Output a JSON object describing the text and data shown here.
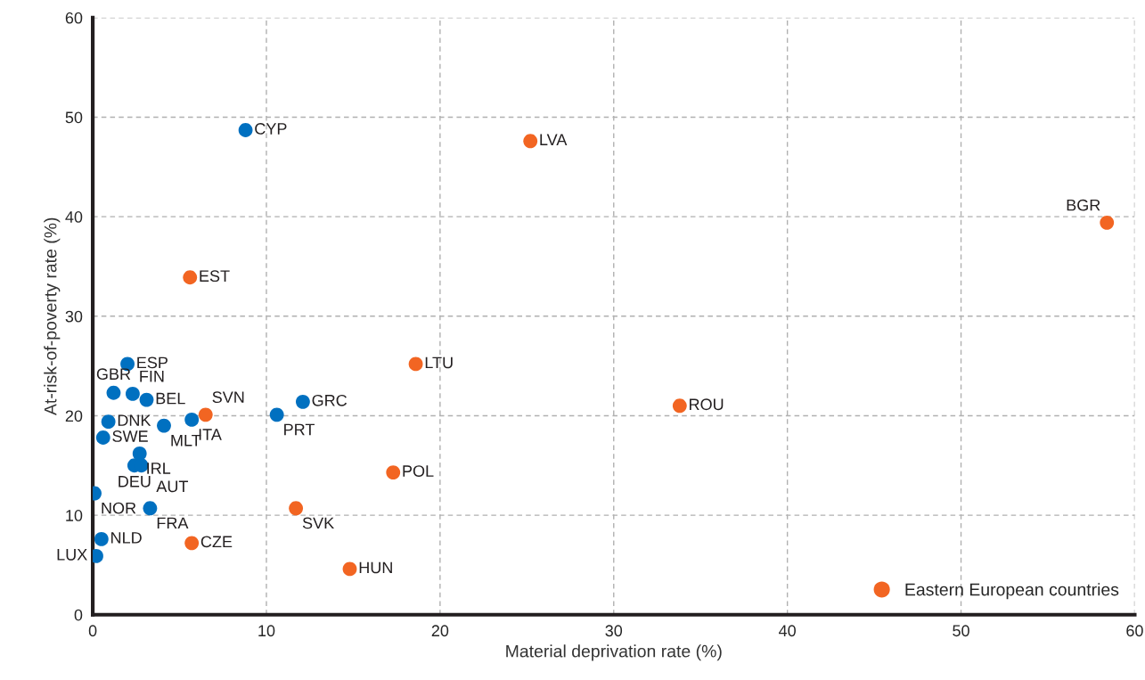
{
  "chart_data": {
    "type": "scatter",
    "xlabel": "Material deprivation rate (%)",
    "ylabel": "At-risk-of-poverty rate (%)",
    "xlim": [
      0,
      60
    ],
    "ylim": [
      0,
      60
    ],
    "xticks": [
      0,
      10,
      20,
      30,
      40,
      50,
      60
    ],
    "yticks": [
      0,
      10,
      20,
      30,
      40,
      50,
      60
    ],
    "grid": true,
    "legend": "bottom right",
    "marker": "circle",
    "series": [
      {
        "color": "#0070c0",
        "x": [
          8.8,
          2.0,
          1.2,
          2.3,
          3.1,
          0.9,
          4.1,
          5.7,
          0.6,
          2.7,
          2.4,
          2.8,
          0.1,
          3.3,
          0.5,
          0.2,
          10.6,
          12.1
        ],
        "values": [
          48.7,
          25.2,
          22.3,
          22.2,
          21.6,
          19.4,
          19.0,
          19.6,
          17.8,
          16.2,
          15.0,
          15.0,
          12.2,
          10.7,
          7.6,
          5.9,
          20.1,
          21.4
        ]
      },
      {
        "name": "Eastern European countries",
        "color": "#f26522",
        "x": [
          25.2,
          58.4,
          5.6,
          18.6,
          33.8,
          6.5,
          17.3,
          11.7,
          5.7,
          14.8
        ],
        "values": [
          47.6,
          39.4,
          33.9,
          25.2,
          21.0,
          20.1,
          14.3,
          10.7,
          7.2,
          4.6
        ]
      }
    ],
    "annotations": [
      {
        "text": "CYP",
        "x": 8.8,
        "y": 48.7
      },
      {
        "text": "ESP",
        "x": 2.0,
        "y": 25.2
      },
      {
        "text": "GBR",
        "x": 1.2,
        "y": 22.3
      },
      {
        "text": "FIN",
        "x": 2.3,
        "y": 22.2
      },
      {
        "text": "BEL",
        "x": 3.1,
        "y": 21.6
      },
      {
        "text": "DNK",
        "x": 0.9,
        "y": 19.4
      },
      {
        "text": "MLT",
        "x": 4.1,
        "y": 19.0
      },
      {
        "text": "ITA",
        "x": 5.7,
        "y": 19.6
      },
      {
        "text": "SWE",
        "x": 0.6,
        "y": 17.8
      },
      {
        "text": "IRL",
        "x": 2.7,
        "y": 16.2
      },
      {
        "text": "DEU",
        "x": 2.4,
        "y": 15.0
      },
      {
        "text": "AUT",
        "x": 2.8,
        "y": 15.0
      },
      {
        "text": "NOR",
        "x": 0.1,
        "y": 12.2
      },
      {
        "text": "FRA",
        "x": 3.3,
        "y": 10.7
      },
      {
        "text": "NLD",
        "x": 0.5,
        "y": 7.6
      },
      {
        "text": "LUX",
        "x": 0.2,
        "y": 5.9
      },
      {
        "text": "PRT",
        "x": 10.6,
        "y": 20.1
      },
      {
        "text": "GRC",
        "x": 12.1,
        "y": 21.4
      },
      {
        "text": "LVA",
        "x": 25.2,
        "y": 47.6
      },
      {
        "text": "BGR",
        "x": 58.4,
        "y": 39.4
      },
      {
        "text": "EST",
        "x": 5.6,
        "y": 33.9
      },
      {
        "text": "LTU",
        "x": 18.6,
        "y": 25.2
      },
      {
        "text": "ROU",
        "x": 33.8,
        "y": 21.0
      },
      {
        "text": "SVN",
        "x": 6.5,
        "y": 20.1
      },
      {
        "text": "POL",
        "x": 17.3,
        "y": 14.3
      },
      {
        "text": "SVK",
        "x": 11.7,
        "y": 10.7
      },
      {
        "text": "CZE",
        "x": 5.7,
        "y": 7.2
      },
      {
        "text": "HUN",
        "x": 14.8,
        "y": 4.6
      }
    ]
  }
}
